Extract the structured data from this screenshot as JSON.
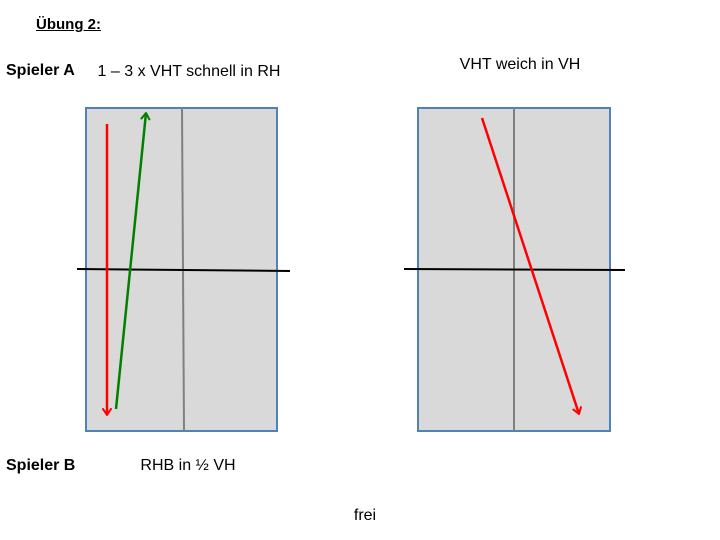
{
  "slide": {
    "title": "Übung 2:",
    "player_a": "Spieler A",
    "player_b": "Spieler B",
    "left_caption": "1 – 3 x VHT schnell in RH",
    "right_caption": "VHT weich in VH",
    "bottom_left_caption": "RHB in ½ VH",
    "bottom_center_caption": "frei"
  },
  "colors": {
    "table_fill": "#d9d9d9",
    "table_border": "#4f81bd",
    "center_line": "#808080",
    "net": "#000000",
    "red_arrow": "#ff0000",
    "green_arrow": "#008000"
  }
}
